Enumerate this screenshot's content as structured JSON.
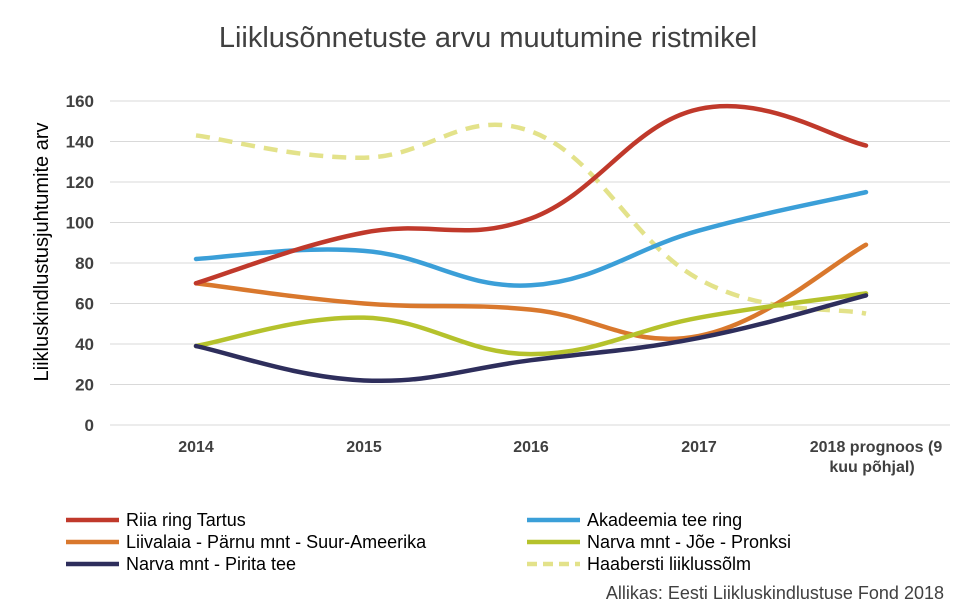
{
  "chart_data": {
    "type": "line",
    "title": "Liiklusõnnetuste arvu muutumine ristmikel",
    "ylabel": "Liikluskindlustusjuhtumite arv",
    "xlabel": "",
    "ylim": [
      0,
      160
    ],
    "yticks": [
      0,
      20,
      40,
      60,
      80,
      100,
      120,
      140,
      160
    ],
    "categories": [
      "2014",
      "2015",
      "2016",
      "2017",
      "2018 prognoos (9 kuu põhjal)"
    ],
    "grid": true,
    "legend_position": "bottom",
    "series": [
      {
        "name": "Riia ring Tartus",
        "values": [
          70,
          95,
          102,
          156,
          138
        ],
        "color": "#c0392b",
        "dashed": false
      },
      {
        "name": "Akadeemia tee ring",
        "values": [
          82,
          86,
          69,
          96,
          115
        ],
        "color": "#3b9fd8",
        "dashed": false
      },
      {
        "name": "Liivalaia - Pärnu mnt - Suur-Ameerika",
        "values": [
          70,
          60,
          57,
          44,
          89
        ],
        "color": "#d9782d",
        "dashed": false
      },
      {
        "name": "Narva mnt - Jõe - Pronksi",
        "values": [
          39,
          53,
          35,
          53,
          65
        ],
        "color": "#b5c22c",
        "dashed": false
      },
      {
        "name": "Narva mnt - Pirita tee",
        "values": [
          39,
          22,
          32,
          43,
          64
        ],
        "color": "#2e2e5c",
        "dashed": false
      },
      {
        "name": "Haabersti liiklussõlm",
        "values": [
          143,
          132,
          145,
          72,
          55
        ],
        "color": "#e3e28a",
        "dashed": true
      }
    ],
    "source": "Allikas: Eesti Liikluskindlustuse Fond 2018"
  }
}
